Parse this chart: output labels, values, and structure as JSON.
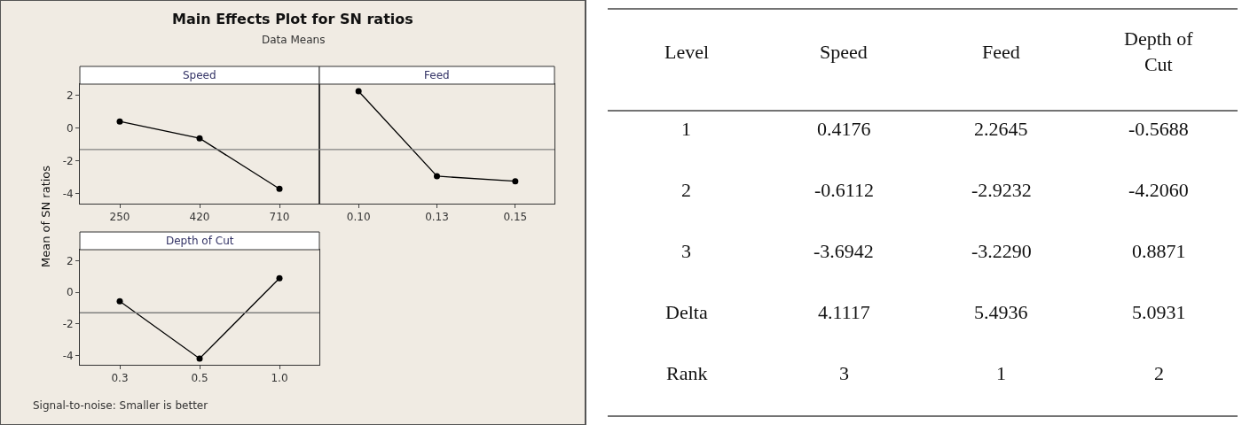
{
  "chart_data": [
    {
      "type": "line",
      "title": "Speed",
      "ylabel": "Mean of SN ratios",
      "annotations": [
        "Main Effects Plot for SN ratios",
        "Data Means",
        "Signal-to-noise: Smaller is better"
      ],
      "categories": [
        "250",
        "420",
        "710"
      ],
      "values": [
        0.4176,
        -0.6112,
        -3.6942
      ],
      "color": "#000000",
      "marker": "circle",
      "ylim": [
        -4.6,
        2.7
      ],
      "yticks": [
        -4,
        -2,
        0,
        2
      ],
      "ref_lines": [
        {
          "axis": "y",
          "value": -1.3,
          "color": "#808080"
        }
      ]
    },
    {
      "type": "line",
      "title": "Feed",
      "categories": [
        "0.10",
        "0.13",
        "0.15"
      ],
      "values": [
        2.2645,
        -2.9232,
        -3.229
      ],
      "color": "#000000",
      "marker": "circle",
      "ylim": [
        -4.6,
        2.7
      ],
      "yticks": [
        -4,
        -2,
        0,
        2
      ],
      "tick_labels": "x",
      "ref_lines": [
        {
          "axis": "y",
          "value": -1.3,
          "color": "#808080"
        }
      ]
    },
    {
      "type": "line",
      "title": "Depth of Cut",
      "categories": [
        "0.3",
        "0.5",
        "1.0"
      ],
      "values": [
        -0.5688,
        -4.206,
        0.8871
      ],
      "color": "#000000",
      "marker": "circle",
      "ylim": [
        -4.6,
        2.7
      ],
      "yticks": [
        -4,
        -2,
        0,
        2
      ],
      "ref_lines": [
        {
          "axis": "y",
          "value": -1.3,
          "color": "#808080"
        }
      ]
    },
    {
      "type": "other",
      "categories": [
        "Level",
        "Speed",
        "Feed",
        "Depth of Cut"
      ],
      "annotations": [
        "1",
        "0.4176",
        "2.2645",
        "-0.5688",
        "2",
        "-0.6112",
        "-2.9232",
        "-4.2060",
        "3",
        "-3.6942",
        "-3.2290",
        "0.8871",
        "Delta",
        "4.1117",
        "5.4936",
        "5.0931",
        "Rank",
        "3",
        "1",
        "2"
      ]
    }
  ]
}
